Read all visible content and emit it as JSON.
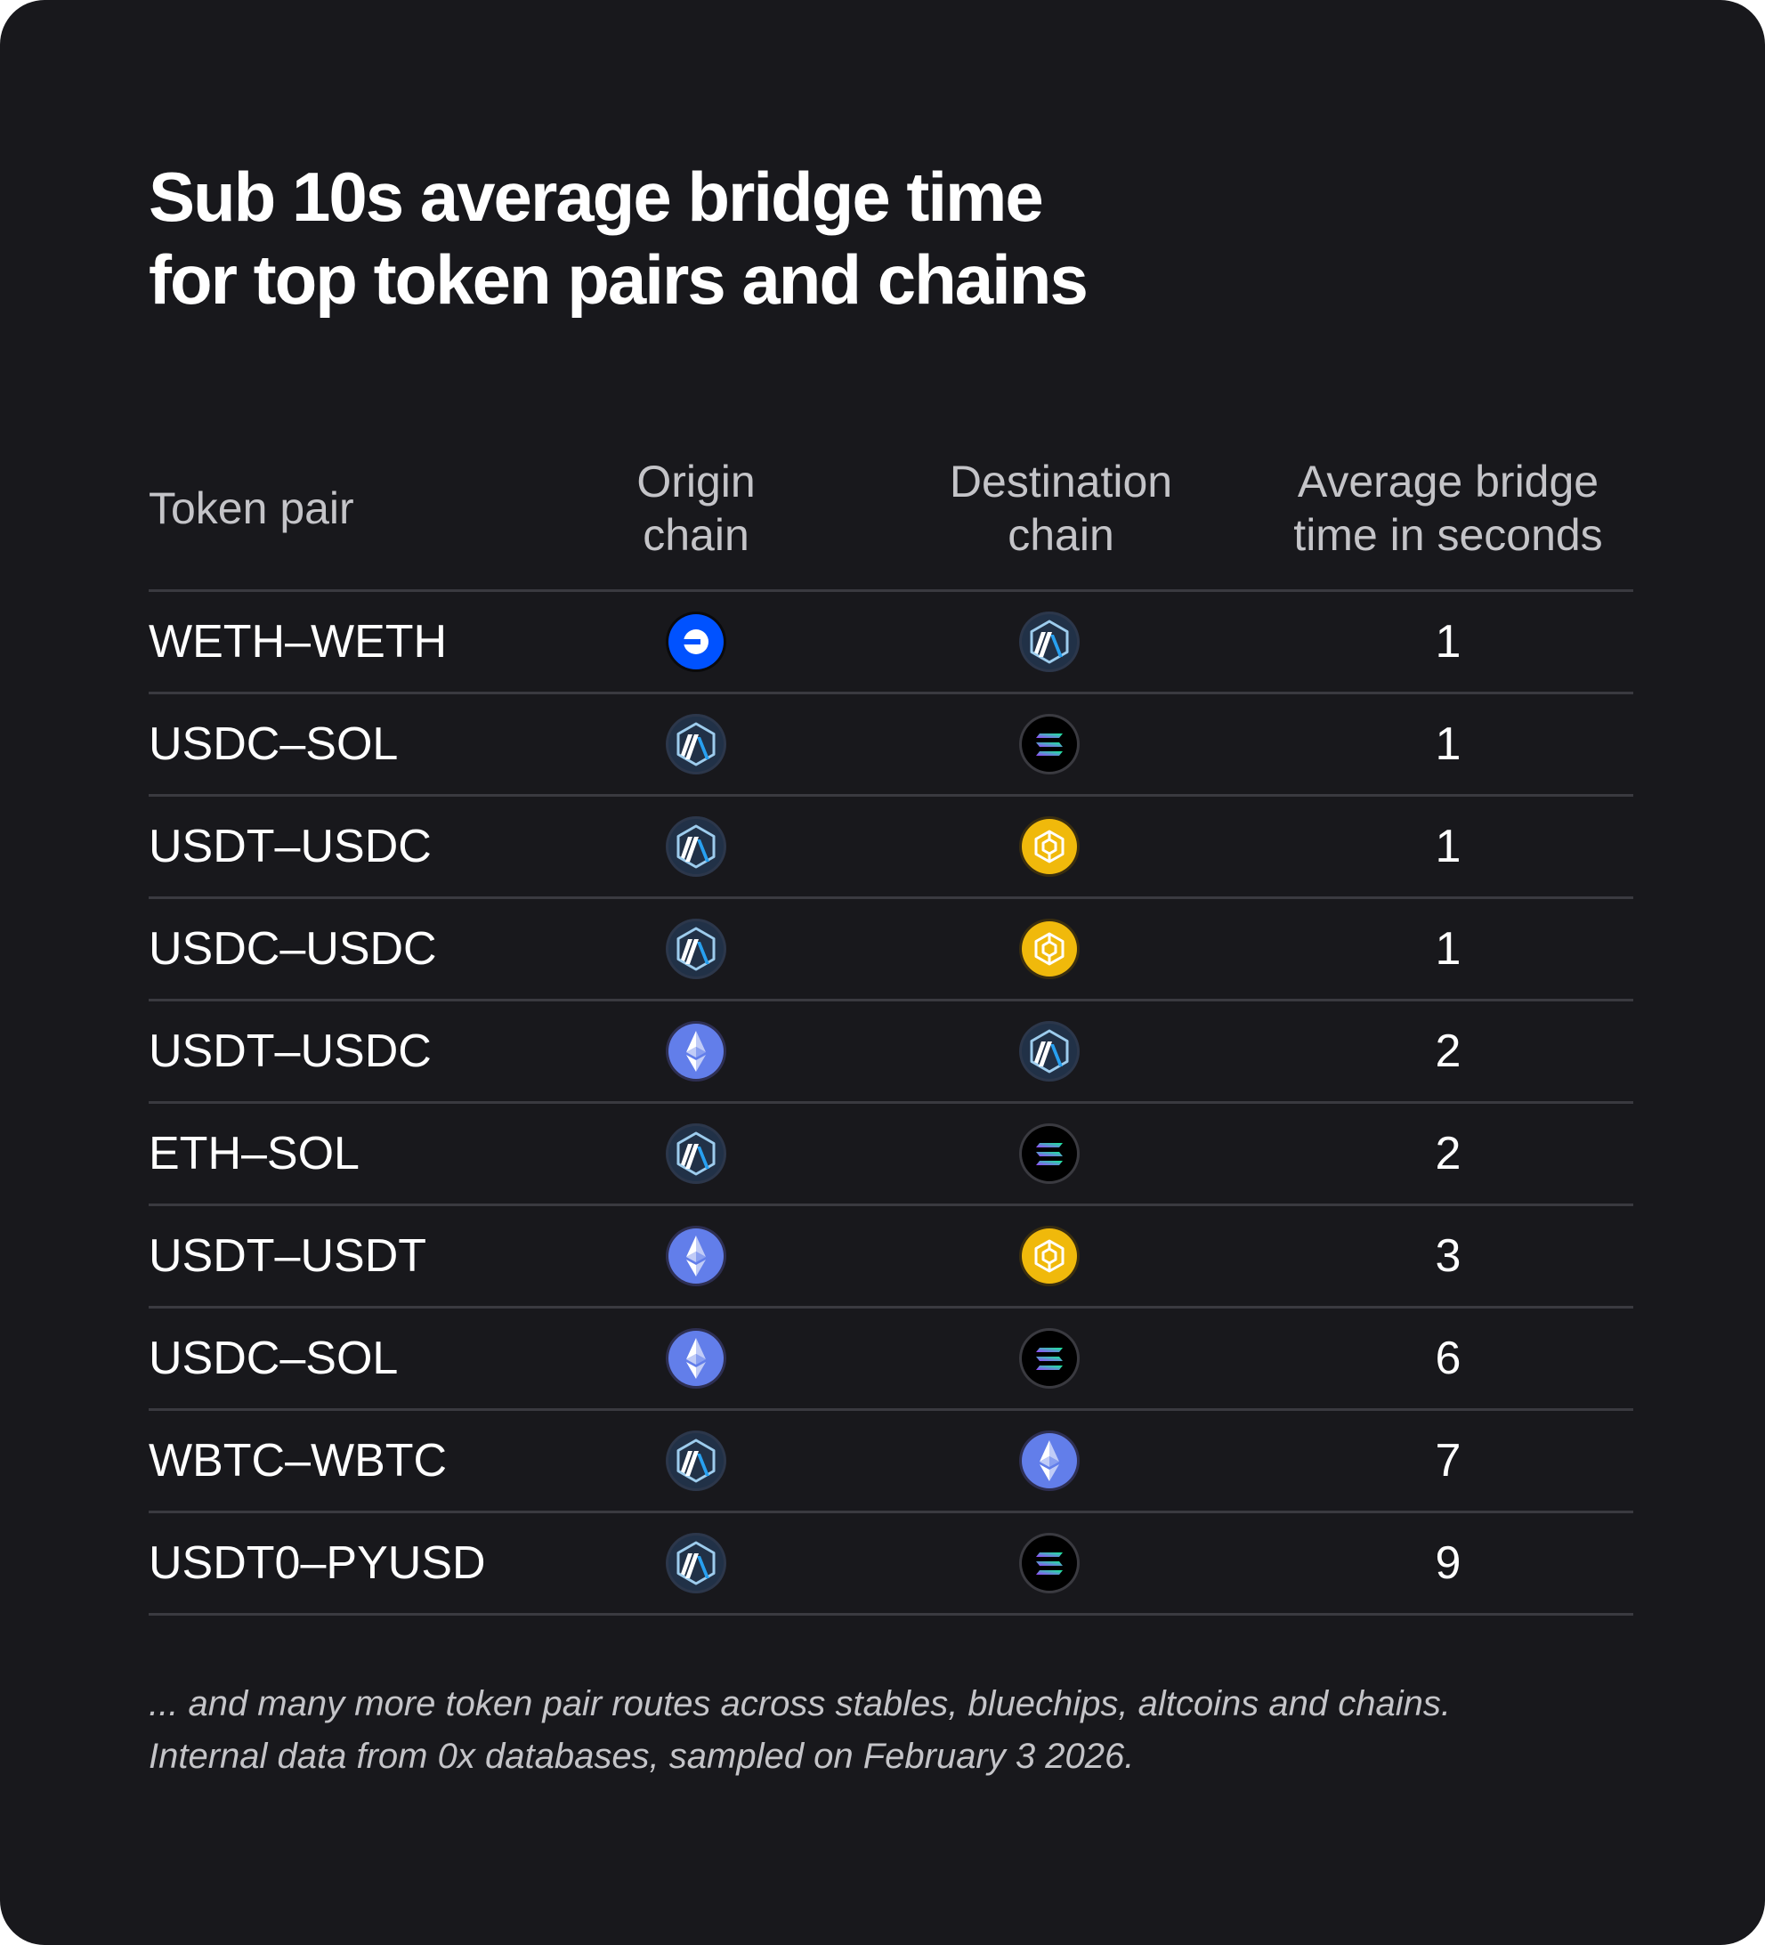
{
  "title": {
    "line1": "Sub 10s average bridge time",
    "line2": "for top token pairs and chains"
  },
  "table": {
    "headers": {
      "pair": [
        "Token pair"
      ],
      "origin": [
        "Origin",
        "chain"
      ],
      "destination": [
        "Destination",
        "chain"
      ],
      "time": [
        "Average bridge",
        "time in seconds"
      ]
    },
    "rows": [
      {
        "pair": "WETH–WETH",
        "origin": "base-icon",
        "destination": "arbitrum-icon",
        "time": "1"
      },
      {
        "pair": "USDC–SOL",
        "origin": "arbitrum-icon",
        "destination": "solana-icon",
        "time": "1"
      },
      {
        "pair": "USDT–USDC",
        "origin": "arbitrum-icon",
        "destination": "bnb-icon",
        "time": "1"
      },
      {
        "pair": "USDC–USDC",
        "origin": "arbitrum-icon",
        "destination": "bnb-icon",
        "time": "1"
      },
      {
        "pair": "USDT–USDC",
        "origin": "ethereum-icon",
        "destination": "arbitrum-icon",
        "time": "2"
      },
      {
        "pair": "ETH–SOL",
        "origin": "arbitrum-icon",
        "destination": "solana-icon",
        "time": "2"
      },
      {
        "pair": "USDT–USDT",
        "origin": "ethereum-icon",
        "destination": "bnb-icon",
        "time": "3"
      },
      {
        "pair": "USDC–SOL",
        "origin": "ethereum-icon",
        "destination": "solana-icon",
        "time": "6"
      },
      {
        "pair": "WBTC–WBTC",
        "origin": "arbitrum-icon",
        "destination": "ethereum-icon",
        "time": "7"
      },
      {
        "pair": "USDT0–PYUSD",
        "origin": "arbitrum-icon",
        "destination": "solana-icon",
        "time": "9"
      }
    ]
  },
  "footer": {
    "line1": "... and many more token pair routes across stables, bluechips, altcoins and chains.",
    "line2": "Internal data from 0x databases, sampled on February 3 2026."
  },
  "colors": {
    "background": "#18181c",
    "text": "#ffffff",
    "muted_text": "#c4c4c8",
    "divider": "#3a3a40",
    "base_blue": "#0052ff",
    "arbitrum_navy": "#213147",
    "arbitrum_blue": "#28a0f0",
    "ethereum_purple": "#627eea",
    "bnb_yellow": "#f0b90b",
    "solana_black": "#000000"
  }
}
